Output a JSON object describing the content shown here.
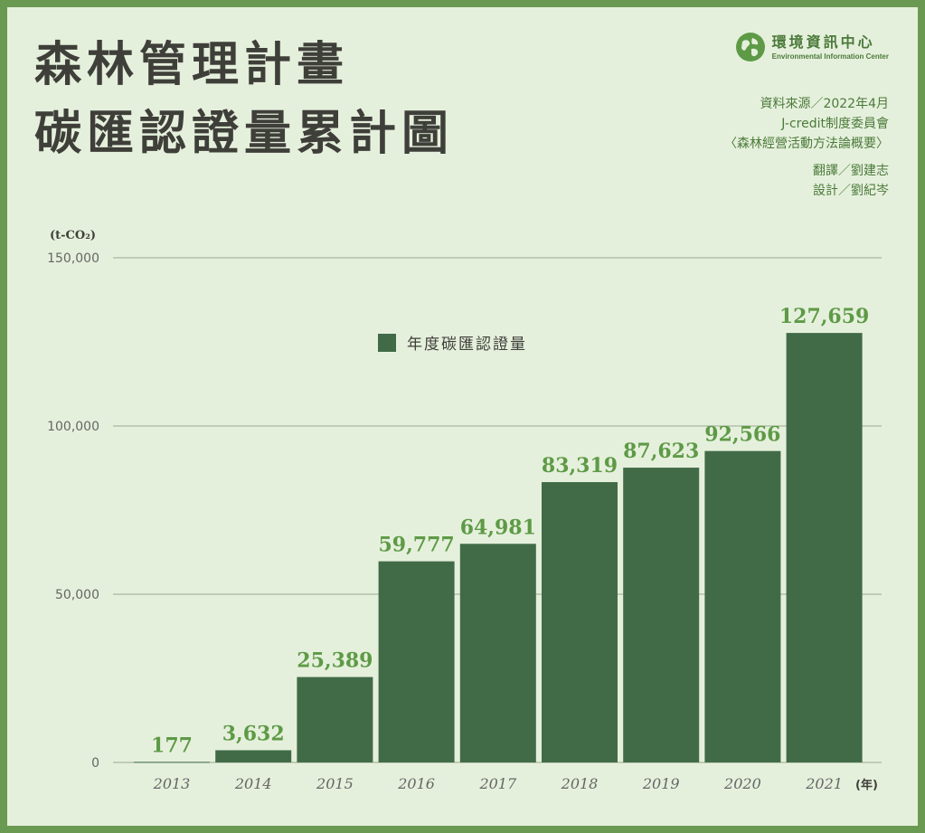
{
  "title_lines": [
    "森林管理計畫",
    "碳匯認證量累計圖"
  ],
  "brand": {
    "name_zh": "環境資訊中心",
    "name_en": "Environmental Information Center"
  },
  "credits": {
    "source": "資料來源／2022年4月",
    "source_org": "J-credit制度委員會",
    "source_doc": "〈森林經營活動方法論概要〉",
    "translator": "翻譯／劉建志",
    "designer": "設計／劉紀岑"
  },
  "colors": {
    "bar": "#416b47",
    "label": "#5e9a46",
    "grid": "#9aa894",
    "axis_text": "#666666",
    "frame": "#6a9a52",
    "background": "#e5f0dc"
  },
  "chart_data": {
    "type": "bar",
    "ylabel": "(t-CO₂)",
    "xlabel": "(年)",
    "categories": [
      "2013",
      "2014",
      "2015",
      "2016",
      "2017",
      "2018",
      "2019",
      "2020",
      "2021"
    ],
    "series": [
      {
        "name": "年度碳匯認證量",
        "values": [
          177,
          3632,
          25389,
          59777,
          64981,
          83319,
          87623,
          92566,
          127659
        ]
      }
    ],
    "value_labels": [
      "177",
      "3,632",
      "25,389",
      "59,777",
      "64,981",
      "83,319",
      "87,623",
      "92,566",
      "127,659"
    ],
    "yticks": [
      0,
      50000,
      100000,
      150000
    ],
    "ytick_labels": [
      "0",
      "50,000",
      "100,000",
      "150,000"
    ],
    "ylim": [
      0,
      150000
    ],
    "grid": true,
    "legend_position": "top-left"
  }
}
